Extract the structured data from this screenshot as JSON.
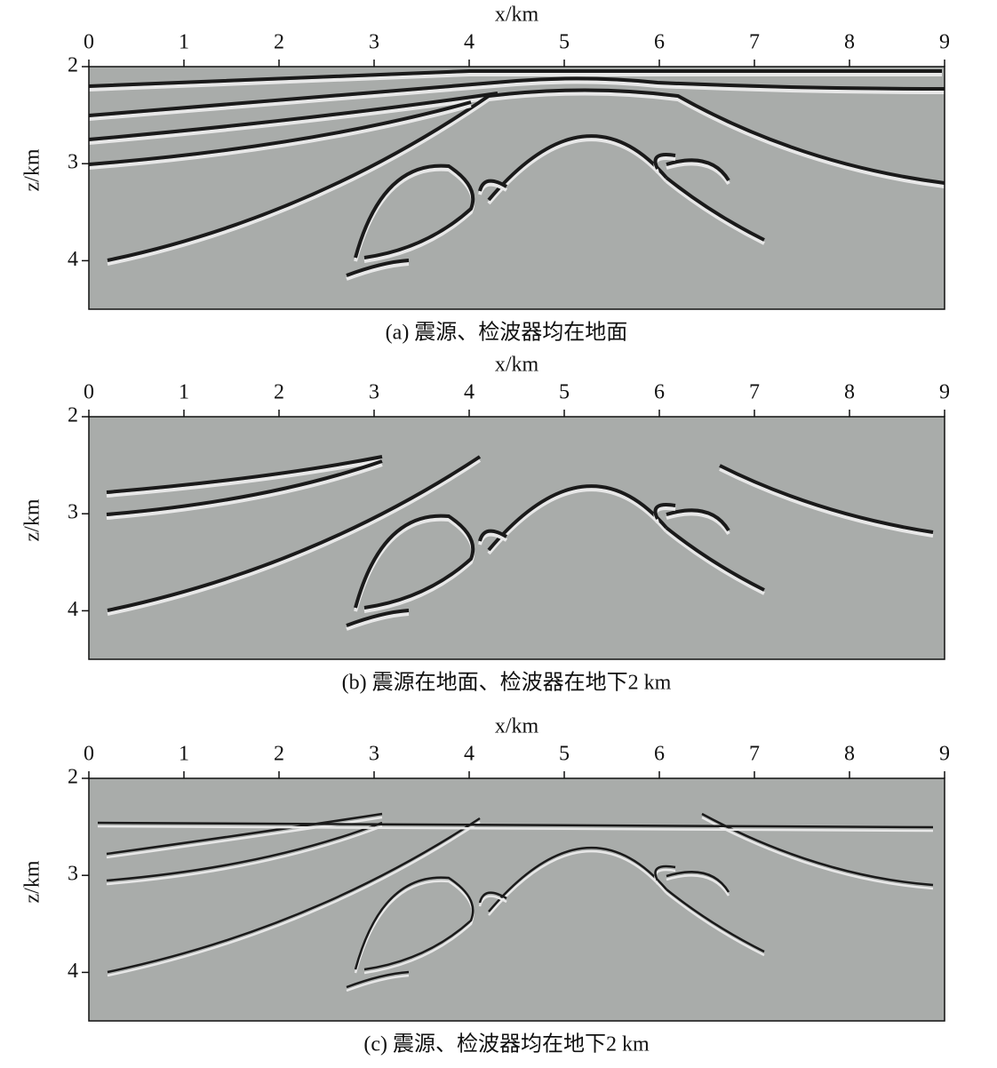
{
  "panels": [
    {
      "caption": "(a) 震源、检波器均在地面",
      "x_label": "x/km",
      "y_label": "z/km",
      "xlim": [
        0,
        9
      ],
      "ylim": [
        2,
        4.5
      ],
      "xticks": [
        0,
        1,
        2,
        3,
        4,
        5,
        6,
        7,
        8,
        9
      ],
      "yticks": [
        2,
        3,
        4
      ]
    },
    {
      "caption": "(b) 震源在地面、检波器在地下2 km",
      "x_label": "x/km",
      "y_label": "z/km",
      "xlim": [
        0,
        9
      ],
      "ylim": [
        2,
        4.5
      ],
      "xticks": [
        0,
        1,
        2,
        3,
        4,
        5,
        6,
        7,
        8,
        9
      ],
      "yticks": [
        2,
        3,
        4
      ]
    },
    {
      "caption": "(c) 震源、检波器均在地下2 km",
      "x_label": "x/km",
      "y_label": "z/km",
      "xlim": [
        0,
        9
      ],
      "ylim": [
        2,
        4.5
      ],
      "xticks": [
        0,
        1,
        2,
        3,
        4,
        5,
        6,
        7,
        8,
        9
      ],
      "yticks": [
        2,
        3,
        4
      ]
    }
  ]
}
